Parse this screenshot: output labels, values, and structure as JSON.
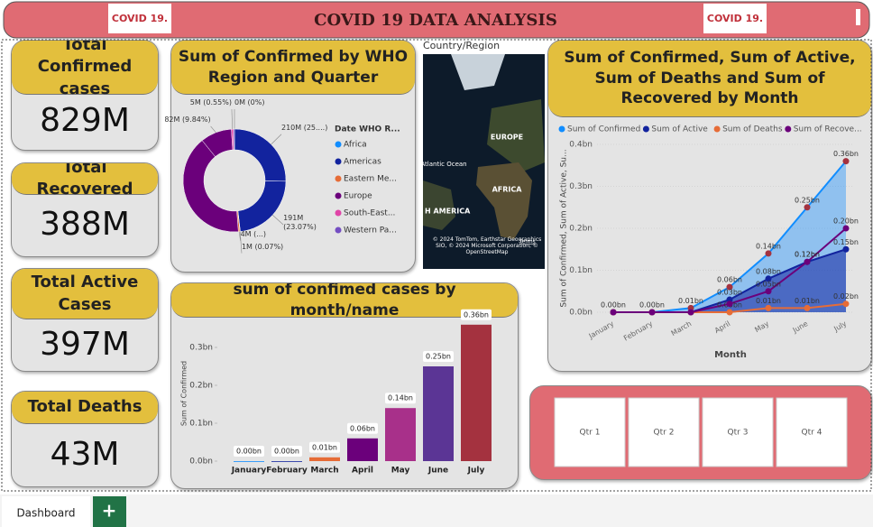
{
  "header": {
    "title": "COVID 19  DATA ANALYSIS",
    "logo_text": "COVID 19."
  },
  "kpis": [
    {
      "label": "Total Confirmed cases",
      "value": "829M"
    },
    {
      "label": "Total Recovered",
      "value": "388M"
    },
    {
      "label": "Total Active Cases",
      "value": "397M"
    },
    {
      "label": "Total Deaths",
      "value": "43M"
    }
  ],
  "map": {
    "label": "Country/Region",
    "places": [
      "EUROPE",
      "AFRICA",
      "Atlantic Ocean",
      "H AMERICA"
    ],
    "attribution": "© 2024 TomTom, Earthstar Geographics SIO, © 2024 Microsoft Corporation, © OpenStreetMap",
    "terms": "Terms"
  },
  "chart_data": [
    {
      "type": "pie",
      "title": "Sum of Confirmed by WHO Region and Quarter",
      "legend_title": "Date WHO R...",
      "series": [
        {
          "name": "Africa",
          "color": "#118dff",
          "values": [
            0
          ],
          "value_labels": [
            "0M (0%)"
          ]
        },
        {
          "name": "Americas",
          "color": "#12239e",
          "values": [
            210,
            191
          ],
          "value_labels": [
            "210M (25....)",
            "191M (23.07%)"
          ]
        },
        {
          "name": "Eastern Me...",
          "color": "#e66c37",
          "values": [
            1,
            4
          ],
          "value_labels": [
            "1M (0.07%)",
            "4M (...)"
          ]
        },
        {
          "name": "Europe",
          "color": "#6b007b",
          "values": [
            336,
            82
          ],
          "value_labels": [
            null,
            "82M (9.84%)"
          ]
        },
        {
          "name": "South-East...",
          "color": "#e044a7",
          "values": [
            5
          ],
          "value_labels": [
            "5M (0.55%)"
          ]
        },
        {
          "name": "Western Pa...",
          "color": "#744ec2",
          "values": [
            3
          ],
          "value_labels": [
            null
          ]
        }
      ]
    },
    {
      "type": "bar",
      "title": "sum of confimed cases by month/name",
      "y_label": "Sum of Confirmed",
      "categories": [
        "January",
        "February",
        "March",
        "April",
        "May",
        "June",
        "July"
      ],
      "values": [
        0,
        0,
        0.01,
        0.06,
        0.14,
        0.25,
        0.36
      ],
      "value_labels": [
        "0.00bn",
        "0.00bn",
        "0.01bn",
        "0.06bn",
        "0.14bn",
        "0.25bn",
        "0.36bn"
      ],
      "colors": [
        "#118dff",
        "#12239e",
        "#e66c37",
        "#6b007b",
        "#a8308a",
        "#5b3595",
        "#a4323f"
      ],
      "ylim": [
        0,
        0.4
      ],
      "yticks": [
        {
          "value": 0,
          "label": "0.0bn"
        },
        {
          "value": 0.1,
          "label": "0.1bn"
        },
        {
          "value": 0.2,
          "label": "0.2bn"
        },
        {
          "value": 0.3,
          "label": "0.3bn"
        }
      ]
    },
    {
      "type": "line",
      "title": "Sum of Confirmed, Sum of Active, Sum of Deaths and Sum of Recovered by Month",
      "x_label": "Month",
      "y_label": "Sum of Confirmed, Sum of Active, Su...",
      "categories": [
        "January",
        "February",
        "March",
        "April",
        "May",
        "June",
        "July"
      ],
      "series": [
        {
          "name": "Sum of Confirmed",
          "color": "#118dff",
          "area": true,
          "values": [
            0,
            0,
            0.01,
            0.06,
            0.14,
            0.25,
            0.36
          ],
          "value_labels": [
            "0.00bn",
            "0.00bn",
            "0.01bn",
            "0.06bn",
            "0.14bn",
            "0.25bn",
            "0.36bn"
          ]
        },
        {
          "name": "Sum of Active",
          "color": "#12239e",
          "area": true,
          "values": [
            0,
            0,
            0,
            0.03,
            0.08,
            0.12,
            0.15
          ],
          "value_labels": [
            null,
            null,
            null,
            "0.03bn",
            "0.08bn",
            "0.12bn",
            "0.15bn"
          ]
        },
        {
          "name": "Sum of Deaths",
          "color": "#e66c37",
          "area": false,
          "values": [
            0,
            0,
            0,
            0,
            0.01,
            0.01,
            0.02
          ],
          "value_labels": [
            null,
            null,
            null,
            "0.00bn",
            "0.01bn",
            "0.01bn",
            "0.02bn"
          ]
        },
        {
          "name": "Sum of Recove...",
          "color": "#6b007b",
          "area": false,
          "values": [
            0,
            0,
            0,
            0.02,
            0.05,
            0.12,
            0.2
          ],
          "value_labels": [
            null,
            null,
            null,
            null,
            "0.05bn",
            "0.12bn",
            "0.20bn"
          ]
        }
      ],
      "ylim": [
        0,
        0.4
      ],
      "yticks": [
        {
          "value": 0,
          "label": "0.0bn"
        },
        {
          "value": 0.1,
          "label": "0.1bn"
        },
        {
          "value": 0.2,
          "label": "0.2bn"
        },
        {
          "value": 0.3,
          "label": "0.3bn"
        },
        {
          "value": 0.4,
          "label": "0.4bn"
        }
      ]
    }
  ],
  "slicer": {
    "items": [
      "Qtr 1",
      "Qtr 2",
      "Qtr 3",
      "Qtr 4"
    ]
  },
  "tabs": {
    "active": "Dashboard",
    "add": "+"
  }
}
